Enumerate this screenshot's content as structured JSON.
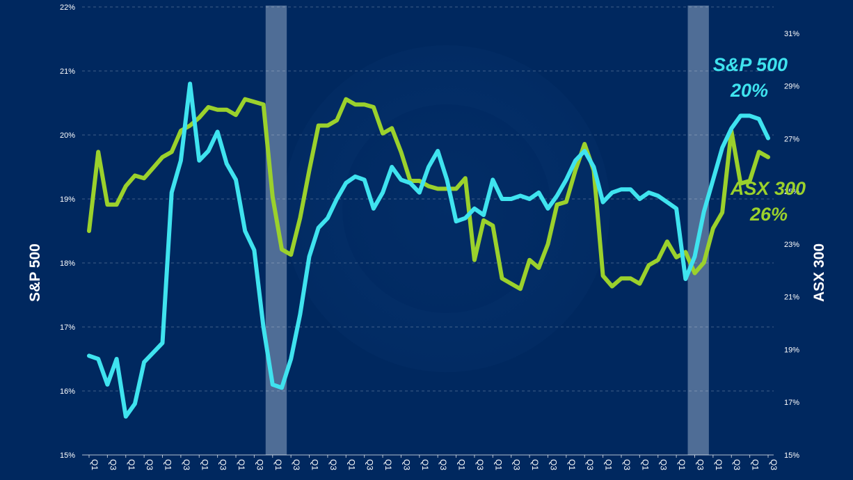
{
  "chart_data": {
    "type": "line",
    "title": "",
    "left_axis": {
      "label": "S&P 500",
      "range": [
        15,
        22
      ],
      "ticks": [
        "15%",
        "16%",
        "17%",
        "18%",
        "19%",
        "20%",
        "21%",
        "22%"
      ]
    },
    "right_axis": {
      "label": "ASX 300",
      "range": [
        15,
        32
      ],
      "ticks": [
        "15%",
        "17%",
        "19%",
        "21%",
        "23%",
        "25%",
        "27%",
        "29%",
        "31%"
      ]
    },
    "x_ticks": [
      "Q1",
      "Q3",
      "Q1",
      "Q3",
      "Q1",
      "Q3",
      "Q1",
      "Q3",
      "Q1",
      "Q3",
      "Q1",
      "Q3",
      "Q1",
      "Q3",
      "Q1",
      "Q3",
      "Q1",
      "Q3",
      "Q1",
      "Q3",
      "Q1",
      "Q3",
      "Q1",
      "Q3",
      "Q1",
      "Q3",
      "Q1",
      "Q3",
      "Q1",
      "Q3",
      "Q1",
      "Q3",
      "Q1",
      "Q3",
      "Q1",
      "Q3",
      "Q1",
      "Q3"
    ],
    "shaded_regions": [
      [
        10,
        11
      ],
      [
        33,
        34
      ]
    ],
    "grid": "horizontal-dashed",
    "colors": {
      "sp500": "#3fe3ef",
      "asx300": "#9bd12c",
      "shade": "#8fa6c2"
    },
    "series": [
      {
        "name": "S&P 500",
        "axis": "left",
        "color": "#3fe3ef",
        "end_label": "20%",
        "values": [
          16.55,
          16.5,
          16.1,
          16.5,
          15.6,
          15.8,
          16.45,
          16.6,
          16.75,
          19.1,
          19.6,
          20.8,
          19.6,
          19.75,
          20.05,
          19.55,
          19.3,
          18.5,
          18.2,
          17.0,
          16.1,
          16.05,
          16.5,
          17.2,
          18.1,
          18.55,
          18.7,
          19.0,
          19.25,
          19.35,
          19.3,
          18.85,
          19.1,
          19.5,
          19.3,
          19.25,
          19.1,
          19.5,
          19.75,
          19.3,
          18.65,
          18.7,
          18.85,
          18.75,
          19.3,
          19.0,
          19.0,
          19.05,
          19.0,
          19.1,
          18.85,
          19.05,
          19.3,
          19.6,
          19.75,
          19.5,
          18.95,
          19.1,
          19.15,
          19.15,
          19.0,
          19.1,
          19.05,
          18.95,
          18.85,
          17.75,
          18.1,
          18.8,
          19.3,
          19.8,
          20.1,
          20.3,
          20.3,
          20.25,
          19.95
        ]
      },
      {
        "name": "ASX 300",
        "axis": "right",
        "color": "#9bd12c",
        "end_label": "26%",
        "values": [
          23.5,
          26.5,
          24.5,
          24.5,
          25.2,
          25.6,
          25.5,
          25.9,
          26.3,
          26.5,
          27.3,
          27.5,
          27.8,
          28.2,
          28.1,
          28.1,
          27.9,
          28.5,
          28.4,
          28.3,
          24.8,
          22.8,
          22.6,
          24.0,
          25.8,
          27.5,
          27.5,
          27.7,
          28.5,
          28.3,
          28.3,
          28.2,
          27.2,
          27.4,
          26.5,
          25.4,
          25.4,
          25.2,
          25.1,
          25.1,
          25.1,
          25.5,
          22.4,
          23.9,
          23.7,
          21.7,
          21.5,
          21.3,
          22.4,
          22.1,
          23.0,
          24.5,
          24.6,
          25.8,
          26.8,
          25.8,
          21.8,
          21.4,
          21.7,
          21.7,
          21.5,
          22.2,
          22.4,
          23.1,
          22.5,
          22.7,
          21.9,
          22.3,
          23.6,
          24.2,
          27.3,
          25.3,
          25.4,
          26.5,
          26.3
        ]
      }
    ],
    "series_labels": [
      {
        "name": "S&P 500",
        "value": "20%"
      },
      {
        "name": "ASX 300",
        "value": "26%"
      }
    ]
  }
}
